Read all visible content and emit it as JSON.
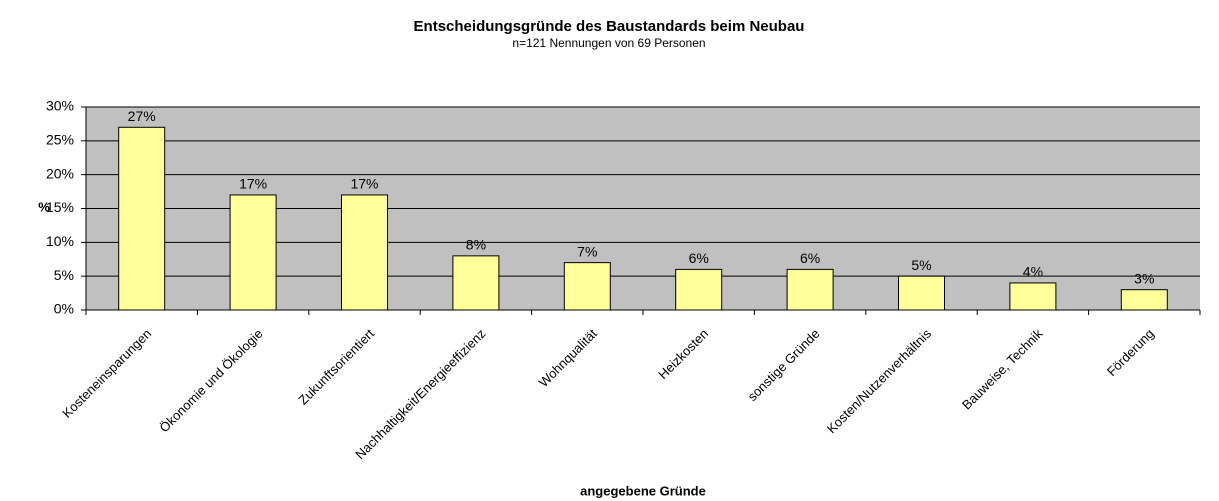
{
  "chart_data": {
    "type": "bar",
    "title": "Entscheidungsgründe des Baustandards beim Neubau",
    "subtitle": "n=121 Nennungen von 69 Personen",
    "x_label": "angegebene Gründe",
    "y_label": "%",
    "categories": [
      "Kosteneinsparungen",
      "Ökonomie und Ökologie",
      "Zukunftsorientiert",
      "Nachhaltigkeit/Energieeffizienz",
      "Wohnqualität",
      "Heizkosten",
      "sonstige Gründe",
      "Kosten/Nutzenverhältnis",
      "Bauweise, Technik",
      "Förderung"
    ],
    "values": [
      27,
      17,
      17,
      8,
      7,
      6,
      6,
      5,
      4,
      3
    ],
    "value_labels": [
      "27%",
      "17%",
      "17%",
      "8%",
      "7%",
      "6%",
      "6%",
      "5%",
      "4%",
      "3%"
    ],
    "color": "#ffff99",
    "ylim": [
      0,
      30
    ],
    "yticks": [
      {
        "value": 0,
        "label": "0%"
      },
      {
        "value": 5,
        "label": "5%"
      },
      {
        "value": 10,
        "label": "10%"
      },
      {
        "value": 15,
        "label": "15%"
      },
      {
        "value": 20,
        "label": "20%"
      },
      {
        "value": 25,
        "label": "25%"
      },
      {
        "value": 30,
        "label": "30%"
      }
    ],
    "grid": true
  }
}
